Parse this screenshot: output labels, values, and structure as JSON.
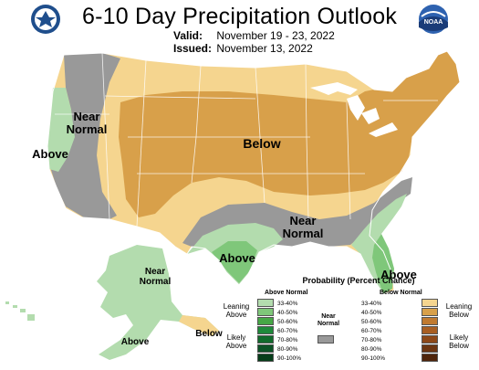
{
  "title": "6-10 Day Precipitation Outlook",
  "valid_label": "Valid:",
  "valid_dates": "November 19 - 23, 2022",
  "issued_label": "Issued:",
  "issued_date": "November 13, 2022",
  "logos": {
    "left": "Department of Commerce seal",
    "right": "NOAA",
    "right_text": "NOAA"
  },
  "map_labels": {
    "near_normal_west": "Near\nNormal",
    "above_california": "Above",
    "below_central": "Below",
    "near_normal_south": "Near\nNormal",
    "above_texas": "Above",
    "above_florida": "Above",
    "near_normal_alaska": "Near\nNormal",
    "above_alaska": "Above",
    "below_alaska_south": "Below"
  },
  "legend": {
    "title": "Probability (Percent Chance)",
    "above_header": "Above Normal",
    "below_header": "Below Normal",
    "near_normal_label": "Near\nNormal",
    "leaning_above": "Leaning\nAbove",
    "likely_above": "Likely\nAbove",
    "leaning_below": "Leaning\nBelow",
    "likely_below": "Likely\nBelow",
    "ranges": [
      "33-40%",
      "40-50%",
      "50-60%",
      "60-70%",
      "70-80%",
      "80-90%",
      "90-100%"
    ],
    "above_colors": [
      "#b3dcae",
      "#7fc77a",
      "#46a746",
      "#1f8a3b",
      "#116b2c",
      "#0c5226",
      "#063d1a"
    ],
    "below_colors": [
      "#f5d58f",
      "#d8a04a",
      "#c07a30",
      "#a85e22",
      "#8d4818",
      "#6c3511",
      "#4f250b"
    ],
    "near_normal_color": "#999999"
  },
  "colors": {
    "above_33_40": "#b3dcae",
    "above_40_50": "#7fc77a",
    "below_33_40": "#f5d58f",
    "below_40_50": "#d8a04a",
    "near_normal": "#999999",
    "boundary": "#ffffff"
  }
}
